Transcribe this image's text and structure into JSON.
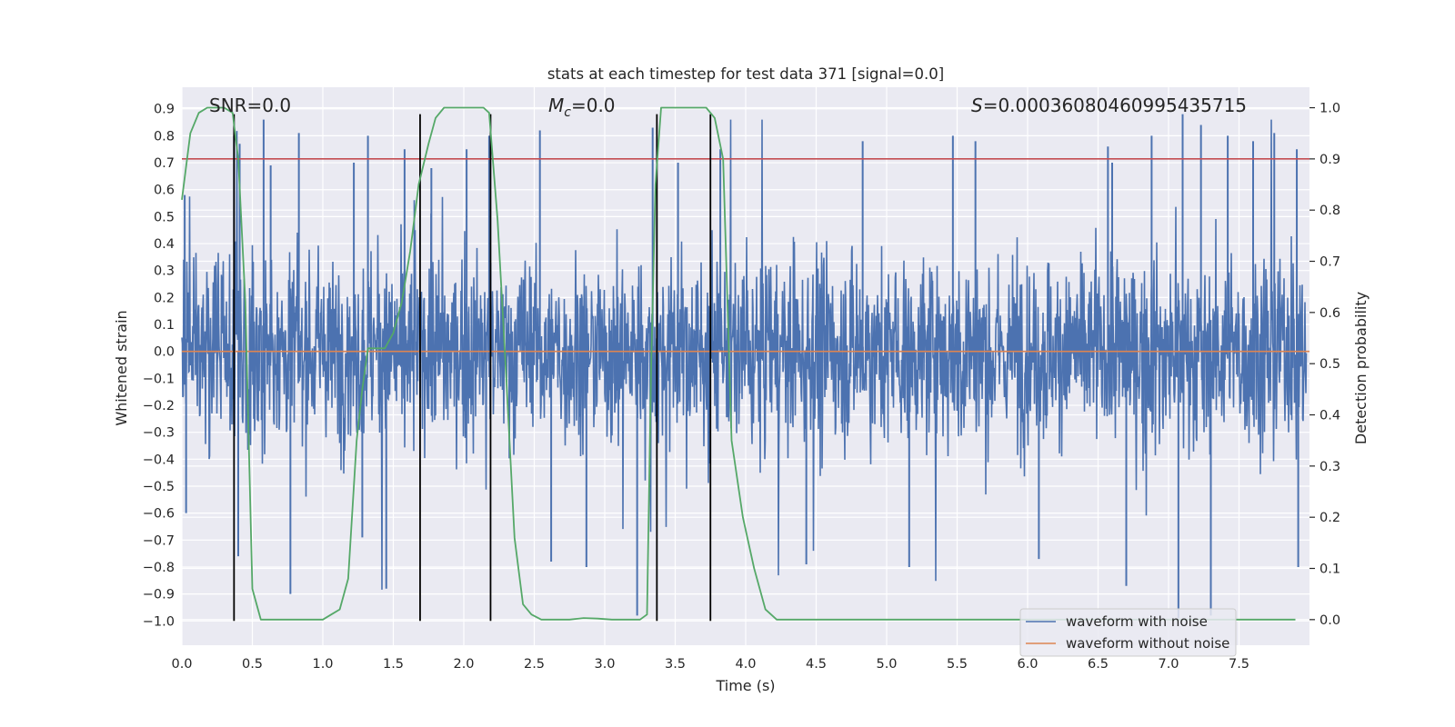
{
  "chart_data": {
    "type": "line",
    "title": "stats at each timestep for test data 371 [signal=0.0]",
    "xlabel": "Time (s)",
    "ylabel": "Whitened strain",
    "y2label": "Detection probability",
    "xlim": [
      0.0,
      8.0
    ],
    "ylim": [
      -1.09,
      0.98
    ],
    "y2lim": [
      -0.05,
      1.04
    ],
    "xticks": [
      "0.0",
      "0.5",
      "1.0",
      "1.5",
      "2.0",
      "2.5",
      "3.0",
      "3.5",
      "4.0",
      "4.5",
      "5.0",
      "5.5",
      "6.0",
      "6.5",
      "7.0",
      "7.5"
    ],
    "yticks": [
      "0.9",
      "0.8",
      "0.7",
      "0.6",
      "0.5",
      "0.4",
      "0.3",
      "0.2",
      "0.1",
      "0.0",
      "−0.1",
      "−0.2",
      "−0.3",
      "−0.4",
      "−0.5",
      "−0.6",
      "−0.7",
      "−0.8",
      "−0.9",
      "−1.0"
    ],
    "y2ticks": [
      "1.0",
      "0.9",
      "0.8",
      "0.7",
      "0.6",
      "0.5",
      "0.4",
      "0.3",
      "0.2",
      "0.1",
      "0.0"
    ],
    "grid": true,
    "legend_position": "lower right",
    "annotations": {
      "snr": "SNR=0.0",
      "mc_symbol": "M",
      "mc_sub": "c",
      "mc_value": "=0.0",
      "s_symbol": "S",
      "s_value": "=0.00036080460995435715"
    },
    "series": [
      {
        "name": "waveform with noise",
        "color": "#4c72b0",
        "axis": "left",
        "description_values": "noise strain oscillating roughly between -0.5 and 0.5 with spikes up to 0.88 and down to -0.98",
        "spikes": [
          [
            0.02,
            0.58
          ],
          [
            0.03,
            -0.6
          ],
          [
            0.37,
            0.8
          ],
          [
            0.4,
            -0.76
          ],
          [
            0.41,
            0.77
          ],
          [
            0.58,
            0.86
          ],
          [
            0.63,
            0.69
          ],
          [
            0.77,
            -0.9
          ],
          [
            0.83,
            0.81
          ],
          [
            1.22,
            0.7
          ],
          [
            1.28,
            -0.69
          ],
          [
            1.32,
            0.8
          ],
          [
            1.45,
            -0.88
          ],
          [
            1.58,
            0.75
          ],
          [
            1.77,
            0.68
          ],
          [
            2.02,
            0.75
          ],
          [
            2.18,
            0.8
          ],
          [
            2.54,
            0.82
          ],
          [
            2.62,
            -0.78
          ],
          [
            2.87,
            -0.8
          ],
          [
            3.23,
            -0.98
          ],
          [
            3.34,
            0.83
          ],
          [
            3.52,
            0.7
          ],
          [
            3.82,
            0.75
          ],
          [
            4.43,
            -0.79
          ],
          [
            4.83,
            0.78
          ],
          [
            5.16,
            -0.8
          ],
          [
            5.47,
            0.8
          ],
          [
            5.63,
            0.78
          ],
          [
            6.08,
            -0.77
          ],
          [
            6.57,
            0.76
          ],
          [
            6.6,
            0.7
          ],
          [
            6.7,
            -0.87
          ],
          [
            6.88,
            0.8
          ],
          [
            7.07,
            -0.99
          ],
          [
            7.1,
            0.88
          ],
          [
            7.23,
            0.84
          ],
          [
            7.3,
            -0.98
          ],
          [
            7.42,
            0.8
          ],
          [
            7.6,
            0.78
          ],
          [
            7.75,
            0.81
          ],
          [
            7.91,
            0.75
          ],
          [
            7.92,
            -0.8
          ]
        ]
      },
      {
        "name": "waveform without noise",
        "color": "#dd8452",
        "axis": "left",
        "x": [
          0.0,
          8.0
        ],
        "y": [
          0.0,
          0.0
        ]
      },
      {
        "color": "#55a868",
        "axis": "right",
        "x": [
          0.0,
          0.06,
          0.12,
          0.18,
          0.24,
          0.3,
          0.36,
          0.4,
          0.45,
          0.5,
          0.56,
          0.62,
          0.7,
          0.8,
          0.9,
          1.0,
          1.06,
          1.12,
          1.18,
          1.24,
          1.28,
          1.32,
          1.38,
          1.44,
          1.5,
          1.56,
          1.62,
          1.68,
          1.75,
          1.8,
          1.86,
          1.92,
          2.0,
          2.08,
          2.14,
          2.18,
          2.24,
          2.3,
          2.36,
          2.42,
          2.48,
          2.55,
          2.65,
          2.75,
          2.85,
          2.95,
          3.05,
          3.15,
          3.25,
          3.3,
          3.33,
          3.36,
          3.4,
          3.46,
          3.55,
          3.65,
          3.72,
          3.78,
          3.84,
          3.9,
          3.98,
          4.06,
          4.14,
          4.22,
          4.4,
          5.0,
          6.0,
          7.0,
          7.9
        ],
        "y": [
          0.82,
          0.95,
          0.99,
          1.0,
          1.0,
          1.0,
          0.99,
          0.9,
          0.62,
          0.06,
          0.0,
          0.0,
          0.0,
          0.0,
          0.0,
          0.0,
          0.01,
          0.02,
          0.08,
          0.35,
          0.45,
          0.53,
          0.53,
          0.53,
          0.56,
          0.62,
          0.72,
          0.85,
          0.93,
          0.98,
          1.0,
          1.0,
          1.0,
          1.0,
          1.0,
          0.99,
          0.78,
          0.48,
          0.16,
          0.03,
          0.01,
          0.0,
          0.0,
          0.0,
          0.003,
          0.002,
          0.0,
          0.0,
          0.0,
          0.01,
          0.5,
          0.85,
          1.0,
          1.0,
          1.0,
          1.0,
          1.0,
          0.98,
          0.9,
          0.35,
          0.2,
          0.1,
          0.02,
          0.0,
          0.0,
          0.0,
          0.0,
          0.0,
          0.0
        ]
      }
    ],
    "threshold_line": {
      "color": "#c44e52",
      "axis": "right",
      "value": 0.9
    },
    "event_lines": {
      "color": "#000000",
      "x": [
        0.37,
        1.69,
        2.19,
        3.37,
        3.75
      ],
      "y_from": -1.0,
      "y_to": 0.88
    }
  }
}
